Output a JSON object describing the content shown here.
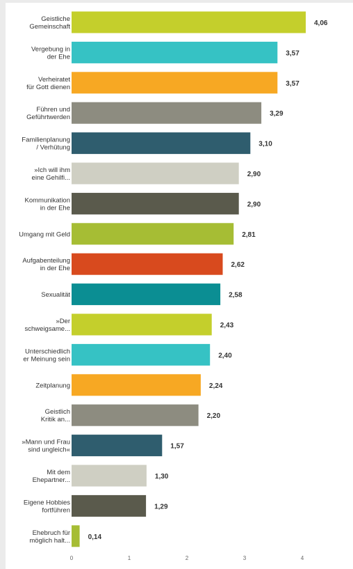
{
  "chart_data": {
    "type": "bar",
    "orientation": "horizontal",
    "categories": [
      [
        "Geistliche",
        "Gemeinschaft"
      ],
      [
        "Vergebung in",
        "der Ehe"
      ],
      [
        "Verheiratet",
        "für Gott dienen"
      ],
      [
        "Führen und",
        "Geführtwerden"
      ],
      [
        "Familienplanung",
        "/ Verhütung"
      ],
      [
        "»Ich will ihm",
        "eine Gehilfi..."
      ],
      [
        "Kommunikation",
        "in der Ehe"
      ],
      [
        "Umgang mit Geld"
      ],
      [
        "Aufgabenteilung",
        "in der Ehe"
      ],
      [
        "Sexualität"
      ],
      [
        "»Der",
        "schweigsame..."
      ],
      [
        "Unterschiedlich",
        "er Meinung sein"
      ],
      [
        "Zeitplanung"
      ],
      [
        "Geistlich",
        "Kritik an..."
      ],
      [
        "»Mann und Frau",
        "sind ungleich«"
      ],
      [
        "Mit dem",
        "Ehepartner..."
      ],
      [
        "Eigene Hobbies",
        "fortführen"
      ],
      [
        "Ehebruch für",
        "möglich halt..."
      ]
    ],
    "values": [
      4.06,
      3.57,
      3.57,
      3.29,
      3.1,
      2.9,
      2.9,
      2.81,
      2.62,
      2.58,
      2.43,
      2.4,
      2.24,
      2.2,
      1.57,
      1.3,
      1.29,
      0.14
    ],
    "value_labels": [
      "4,06",
      "3,57",
      "3,57",
      "3,29",
      "3,10",
      "2,90",
      "2,90",
      "2,81",
      "2,62",
      "2,58",
      "2,43",
      "2,40",
      "2,24",
      "2,20",
      "1,57",
      "1,30",
      "1,29",
      "0,14"
    ],
    "colors": [
      "#c4cf2c",
      "#36c2c4",
      "#f7a823",
      "#8d8c80",
      "#2f5d6e",
      "#cfcfc3",
      "#5a5a4c",
      "#a6bd34",
      "#d84a1e",
      "#0b8e93",
      "#c4cf2c",
      "#36c2c4",
      "#f7a823",
      "#8d8c80",
      "#2f5d6e",
      "#cfcfc3",
      "#5a5a4c",
      "#a6bd34"
    ],
    "xticks": [
      "0",
      "1",
      "2",
      "3",
      "4",
      "5"
    ],
    "xlim": [
      0,
      5
    ],
    "grid": false,
    "title": "",
    "xlabel": "",
    "ylabel": ""
  }
}
